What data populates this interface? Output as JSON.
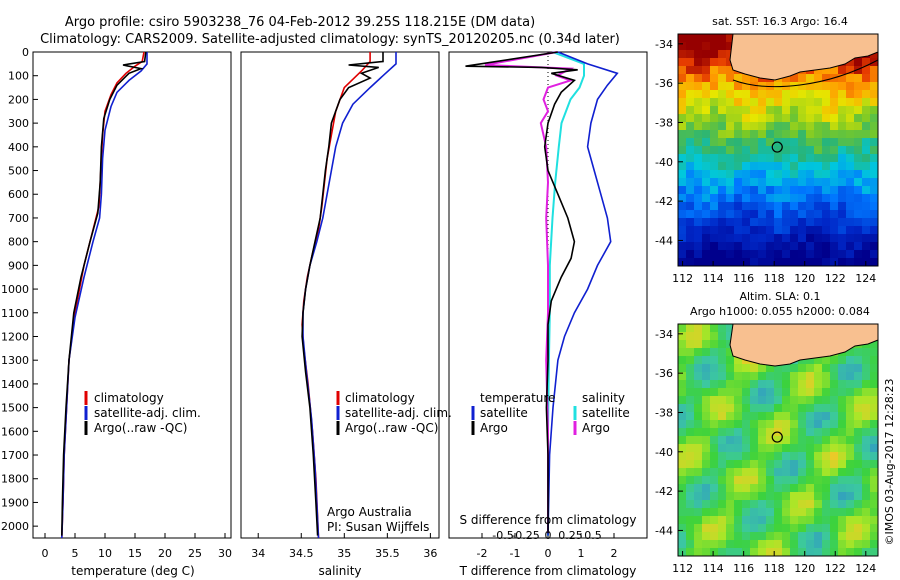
{
  "title_line1": "Argo profile: csiro 5903238_76 04-Feb-2012 39.25S 118.215E (DM data)",
  "title_line2": "Climatology: CARS2009. Satellite-adjusted climatology: synTS_20120205.nc (0.34d later)",
  "map_top_title": "sat. SST: 16.3 Argo: 16.4",
  "map_bottom_title1": "Altim. SLA: 0.1",
  "map_bottom_title2": "Argo h1000: 0.055 h2000: 0.084",
  "credit": "©IMOS 03-Aug-2017 12:28:23",
  "attribution1": "Argo Australia",
  "attribution2": "PI: Susan Wijffels",
  "legend_labels": {
    "climatology": "climatology",
    "satellite_adj": "satellite-adj. clim.",
    "argo": "Argo(..raw -QC)",
    "temperature": "temperature",
    "salinity": "salinity",
    "satellite": "satellite",
    "argo_short": "Argo"
  },
  "colors": {
    "climatology": "#e00000",
    "satellite": "#1020d0",
    "argo": "#000000",
    "sal_satellite": "#20e0e0",
    "sal_argo": "#e020e0",
    "land": "#f8c090"
  },
  "chart_data": [
    {
      "type": "line",
      "xlabel": "temperature (deg C)",
      "ylabel": "",
      "xlim": [
        -2,
        31
      ],
      "ylim": [
        2050,
        0
      ],
      "xticks": [
        "0",
        "5",
        "10",
        "15",
        "20",
        "25",
        "30"
      ],
      "yticks": [
        "0",
        "100",
        "200",
        "300",
        "400",
        "500",
        "600",
        "700",
        "800",
        "900",
        "1000",
        "1100",
        "1200",
        "1300",
        "1400",
        "1500",
        "1600",
        "1700",
        "1800",
        "1900",
        "2000"
      ],
      "series": [
        {
          "name": "climatology",
          "points": [
            [
              16.5,
              0
            ],
            [
              16.2,
              40
            ],
            [
              15,
              60
            ],
            [
              13.5,
              90
            ],
            [
              12,
              130
            ],
            [
              11,
              180
            ],
            [
              10,
              250
            ],
            [
              9.6,
              350
            ],
            [
              9.3,
              500
            ],
            [
              9,
              650
            ],
            [
              8,
              750
            ],
            [
              6.5,
              900
            ],
            [
              5,
              1100
            ],
            [
              4,
              1300
            ],
            [
              3.6,
              1500
            ],
            [
              3.2,
              1700
            ],
            [
              3,
              1900
            ],
            [
              2.8,
              2050
            ]
          ]
        },
        {
          "name": "satellite-adj. clim.",
          "points": [
            [
              17,
              0
            ],
            [
              17,
              50
            ],
            [
              16,
              80
            ],
            [
              14,
              120
            ],
            [
              12,
              170
            ],
            [
              11,
              230
            ],
            [
              10,
              330
            ],
            [
              9.6,
              450
            ],
            [
              9.4,
              600
            ],
            [
              9.1,
              700
            ],
            [
              8,
              800
            ],
            [
              6.5,
              950
            ],
            [
              5,
              1120
            ],
            [
              4,
              1300
            ],
            [
              3.6,
              1500
            ],
            [
              3.2,
              1700
            ],
            [
              3,
              1900
            ],
            [
              2.8,
              2050
            ]
          ]
        },
        {
          "name": "Argo(..raw -QC)",
          "points": [
            [
              16.8,
              0
            ],
            [
              16.6,
              40
            ],
            [
              13,
              55
            ],
            [
              16,
              70
            ],
            [
              14,
              90
            ],
            [
              12,
              140
            ],
            [
              10.8,
              200
            ],
            [
              9.8,
              280
            ],
            [
              9.4,
              400
            ],
            [
              9.2,
              550
            ],
            [
              8.8,
              680
            ],
            [
              7.5,
              800
            ],
            [
              6,
              950
            ],
            [
              4.8,
              1100
            ],
            [
              4,
              1300
            ],
            [
              3.5,
              1500
            ],
            [
              3.1,
              1700
            ],
            [
              2.9,
              1900
            ],
            [
              2.8,
              2040
            ]
          ]
        }
      ]
    },
    {
      "type": "line",
      "xlabel": "salinity",
      "ylabel": "",
      "xlim": [
        33.8,
        36.1
      ],
      "ylim": [
        2050,
        0
      ],
      "xticks": [
        "34",
        "34.5",
        "35",
        "35.5",
        "36"
      ],
      "series": [
        {
          "name": "climatology",
          "points": [
            [
              35.3,
              0
            ],
            [
              35.3,
              40
            ],
            [
              35.2,
              80
            ],
            [
              35,
              150
            ],
            [
              34.9,
              250
            ],
            [
              34.85,
              350
            ],
            [
              34.8,
              450
            ],
            [
              34.77,
              550
            ],
            [
              34.74,
              650
            ],
            [
              34.7,
              750
            ],
            [
              34.63,
              850
            ],
            [
              34.57,
              950
            ],
            [
              34.53,
              1050
            ],
            [
              34.51,
              1150
            ],
            [
              34.53,
              1250
            ],
            [
              34.58,
              1400
            ],
            [
              34.63,
              1600
            ],
            [
              34.67,
              1800
            ],
            [
              34.7,
              2050
            ]
          ]
        },
        {
          "name": "satellite-adj. clim.",
          "points": [
            [
              35.6,
              0
            ],
            [
              35.6,
              50
            ],
            [
              35.45,
              100
            ],
            [
              35.3,
              150
            ],
            [
              35.1,
              220
            ],
            [
              34.98,
              300
            ],
            [
              34.9,
              400
            ],
            [
              34.85,
              500
            ],
            [
              34.8,
              600
            ],
            [
              34.75,
              700
            ],
            [
              34.68,
              800
            ],
            [
              34.6,
              900
            ],
            [
              34.55,
              1000
            ],
            [
              34.52,
              1100
            ],
            [
              34.52,
              1200
            ],
            [
              34.56,
              1350
            ],
            [
              34.62,
              1550
            ],
            [
              34.66,
              1750
            ],
            [
              34.7,
              2050
            ]
          ]
        },
        {
          "name": "Argo(..raw -QC)",
          "points": [
            [
              35.45,
              0
            ],
            [
              35.45,
              40
            ],
            [
              35.05,
              55
            ],
            [
              35.4,
              65
            ],
            [
              35.2,
              90
            ],
            [
              35.3,
              110
            ],
            [
              35.05,
              150
            ],
            [
              34.95,
              200
            ],
            [
              34.85,
              300
            ],
            [
              34.82,
              400
            ],
            [
              34.78,
              500
            ],
            [
              34.75,
              600
            ],
            [
              34.72,
              700
            ],
            [
              34.66,
              800
            ],
            [
              34.6,
              900
            ],
            [
              34.55,
              1000
            ],
            [
              34.52,
              1100
            ],
            [
              34.51,
              1200
            ],
            [
              34.55,
              1350
            ],
            [
              34.6,
              1500
            ],
            [
              34.64,
              1700
            ],
            [
              34.67,
              1900
            ],
            [
              34.69,
              2040
            ]
          ]
        }
      ]
    },
    {
      "type": "line",
      "xlabel": "T difference from climatology",
      "ylabel": "",
      "xlim": [
        -3,
        3
      ],
      "ylim": [
        2050,
        0
      ],
      "xticks": [
        "-2",
        "-1",
        "0",
        "1",
        "2"
      ],
      "s_axis_label": "S difference from climatology",
      "s_ticks": [
        "-0.5",
        "-0.25",
        "0",
        "0.25",
        "0.5"
      ],
      "series": [
        {
          "name": "satellite",
          "points": [
            [
              0.3,
              0
            ],
            [
              1.2,
              50
            ],
            [
              2.1,
              90
            ],
            [
              1.8,
              140
            ],
            [
              1.5,
              200
            ],
            [
              1.3,
              300
            ],
            [
              1.2,
              400
            ],
            [
              1.4,
              500
            ],
            [
              1.6,
              600
            ],
            [
              1.8,
              700
            ],
            [
              1.9,
              800
            ],
            [
              1.5,
              900
            ],
            [
              1.2,
              1000
            ],
            [
              0.8,
              1100
            ],
            [
              0.5,
              1200
            ],
            [
              0.3,
              1300
            ],
            [
              0.15,
              1500
            ],
            [
              0.05,
              1700
            ],
            [
              0,
              2040
            ]
          ]
        },
        {
          "name": "Argo",
          "points": [
            [
              0.3,
              0
            ],
            [
              -2.5,
              60
            ],
            [
              -0.2,
              65
            ],
            [
              0.9,
              75
            ],
            [
              0.1,
              90
            ],
            [
              0.8,
              120
            ],
            [
              0.4,
              170
            ],
            [
              0.2,
              220
            ],
            [
              0,
              300
            ],
            [
              -0.1,
              400
            ],
            [
              0,
              500
            ],
            [
              0.3,
              600
            ],
            [
              0.6,
              700
            ],
            [
              0.8,
              800
            ],
            [
              0.7,
              870
            ],
            [
              0.4,
              950
            ],
            [
              0.1,
              1050
            ],
            [
              0,
              1150
            ],
            [
              0,
              1300
            ],
            [
              -0.05,
              1500
            ],
            [
              0,
              1700
            ],
            [
              0,
              2030
            ]
          ]
        }
      ],
      "s_series": [
        {
          "name": "satellite",
          "points": [
            [
              0.05,
              0
            ],
            [
              0.4,
              50
            ],
            [
              0.4,
              100
            ],
            [
              0.35,
              150
            ],
            [
              0.25,
              200
            ],
            [
              0.15,
              300
            ],
            [
              0.12,
              400
            ],
            [
              0.08,
              550
            ],
            [
              0.05,
              700
            ],
            [
              0.02,
              900
            ],
            [
              0.02,
              1100
            ],
            [
              0.01,
              1300
            ],
            [
              0,
              1600
            ],
            [
              0,
              2040
            ]
          ]
        },
        {
          "name": "Argo",
          "points": [
            [
              0.1,
              0
            ],
            [
              -0.7,
              55
            ],
            [
              0.25,
              70
            ],
            [
              0.1,
              100
            ],
            [
              0.25,
              120
            ],
            [
              0,
              150
            ],
            [
              -0.05,
              200
            ],
            [
              0,
              250
            ],
            [
              -0.08,
              300
            ],
            [
              -0.02,
              400
            ],
            [
              0,
              550
            ],
            [
              -0.02,
              700
            ],
            [
              0,
              900
            ],
            [
              0,
              1100
            ],
            [
              -0.02,
              1300
            ],
            [
              0,
              1600
            ],
            [
              0,
              2030
            ]
          ]
        }
      ]
    }
  ],
  "map_axes": {
    "x_ticks": [
      "112",
      "114",
      "116",
      "118",
      "120",
      "122",
      "124"
    ],
    "y_ticks": [
      "-34",
      "-36",
      "-38",
      "-40",
      "-42",
      "-44"
    ]
  },
  "map_marker": {
    "lon": 118.2,
    "lat": -39.25
  }
}
